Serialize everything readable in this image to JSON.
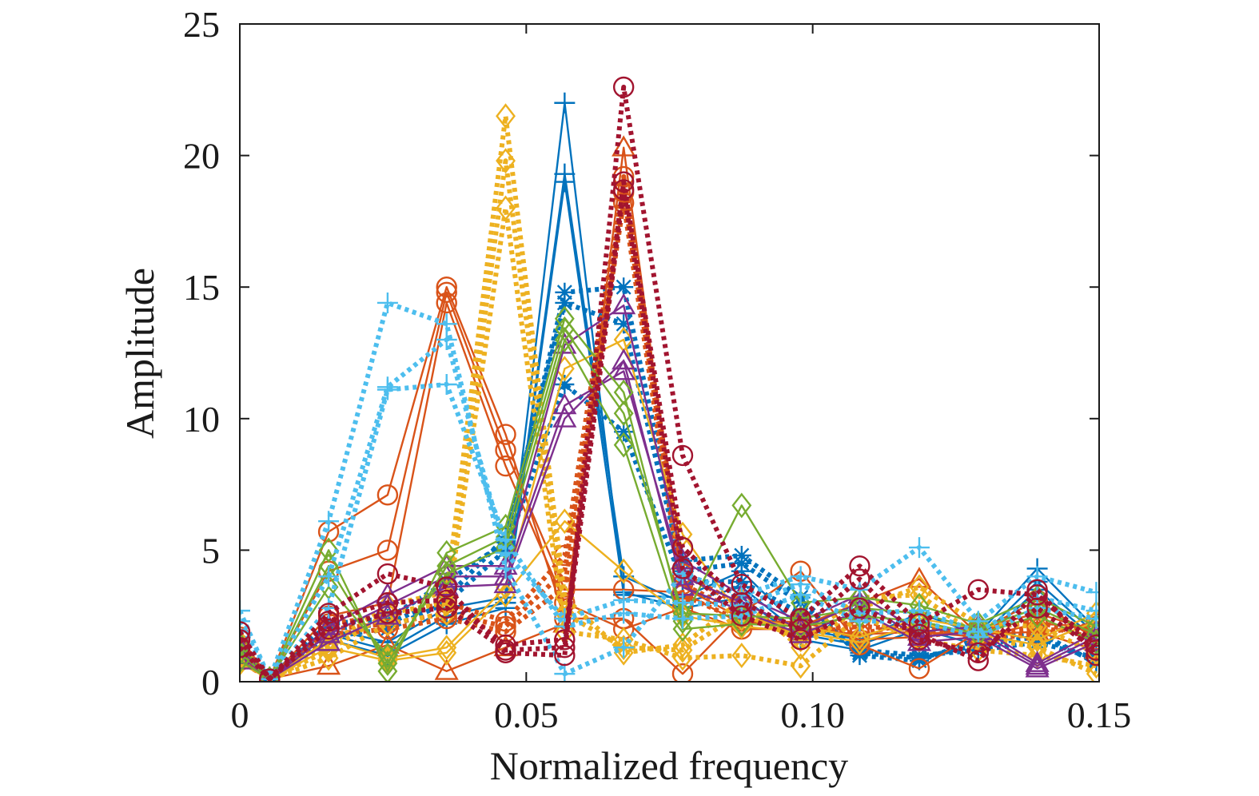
{
  "chart_data": {
    "type": "line",
    "title": "",
    "xlabel": "Normalized frequency",
    "ylabel": "Amplitude",
    "xlim": [
      0,
      0.15
    ],
    "ylim": [
      0,
      25
    ],
    "grid": false,
    "legend": "none",
    "x_ticks": [
      {
        "value": 0,
        "label": "0"
      },
      {
        "value": 0.05,
        "label": "0.05"
      },
      {
        "value": 0.1,
        "label": "0.10"
      },
      {
        "value": 0.15,
        "label": "0.15"
      }
    ],
    "y_ticks": [
      {
        "value": 0,
        "label": "0"
      },
      {
        "value": 5,
        "label": "5"
      },
      {
        "value": 10,
        "label": "10"
      },
      {
        "value": 15,
        "label": "15"
      },
      {
        "value": 20,
        "label": "20"
      },
      {
        "value": 25,
        "label": "25"
      }
    ],
    "x": [
      0,
      0.0052,
      0.0155,
      0.0258,
      0.0361,
      0.0464,
      0.0567,
      0.067,
      0.0773,
      0.0876,
      0.0979,
      0.1082,
      0.1186,
      0.1289,
      0.1392,
      0.1495
    ],
    "series": [
      {
        "color": "#0072bd",
        "dash": "solid",
        "marker": "plus",
        "values": [
          1.2,
          0.1,
          2.0,
          1.5,
          2.8,
          3.2,
          22.0,
          3.3,
          3.2,
          4.2,
          2.0,
          1.6,
          2.6,
          1.8,
          4.3,
          2.0
        ]
      },
      {
        "color": "#0072bd",
        "dash": "solid",
        "marker": "plus",
        "values": [
          1.0,
          0.1,
          1.8,
          1.2,
          2.5,
          3.0,
          19.3,
          4.0,
          3.0,
          3.6,
          1.8,
          1.4,
          2.2,
          1.6,
          3.8,
          1.8
        ]
      },
      {
        "color": "#0072bd",
        "dash": "solid",
        "marker": "plus",
        "values": [
          0.8,
          0.1,
          1.6,
          1.0,
          2.2,
          2.8,
          19.0,
          3.4,
          2.8,
          3.2,
          1.6,
          1.2,
          2.0,
          1.4,
          3.5,
          1.6
        ]
      },
      {
        "color": "#0072bd",
        "dash": "dot",
        "marker": "asterisk",
        "values": [
          1.3,
          0.2,
          2.2,
          2.4,
          3.8,
          5.3,
          14.8,
          15.0,
          4.6,
          4.8,
          3.2,
          1.0,
          0.8,
          1.6,
          1.9,
          0.7
        ]
      },
      {
        "color": "#0072bd",
        "dash": "dot",
        "marker": "asterisk",
        "values": [
          1.1,
          0.2,
          2.0,
          2.2,
          3.2,
          5.5,
          14.4,
          13.6,
          4.2,
          4.5,
          3.0,
          1.1,
          0.9,
          1.4,
          1.7,
          0.8
        ]
      },
      {
        "color": "#0072bd",
        "dash": "dot",
        "marker": "asterisk",
        "values": [
          0.9,
          0.2,
          1.7,
          2.0,
          3.0,
          5.0,
          11.3,
          9.5,
          3.8,
          3.8,
          2.6,
          1.2,
          1.0,
          1.2,
          1.5,
          0.9
        ]
      },
      {
        "color": "#d95319",
        "dash": "solid",
        "marker": "circle",
        "values": [
          1.7,
          0.1,
          5.7,
          7.1,
          15.0,
          9.4,
          2.4,
          2.4,
          0.3,
          2.6,
          4.2,
          1.4,
          0.5,
          1.9,
          3.1,
          1.6
        ]
      },
      {
        "color": "#d95319",
        "dash": "solid",
        "marker": "circle",
        "values": [
          1.4,
          0.1,
          4.2,
          5.0,
          14.8,
          8.8,
          3.5,
          3.5,
          3.4,
          2.2,
          2.3,
          1.6,
          1.7,
          2.0,
          2.6,
          1.9
        ]
      },
      {
        "color": "#d95319",
        "dash": "solid",
        "marker": "circle",
        "values": [
          1.1,
          0.1,
          2.5,
          3.0,
          14.4,
          8.2,
          3.0,
          2.0,
          2.8,
          2.0,
          2.0,
          1.8,
          1.9,
          1.7,
          2.2,
          2.1
        ]
      },
      {
        "color": "#d95319",
        "dash": "solid",
        "marker": "triangle",
        "values": [
          0.9,
          0.1,
          0.6,
          1.4,
          0.4,
          1.3,
          2.2,
          20.3,
          3.6,
          2.4,
          2.1,
          3.0,
          3.9,
          1.8,
          1.9,
          1.2
        ]
      },
      {
        "color": "#d95319",
        "dash": "dot",
        "marker": "circle",
        "values": [
          1.2,
          0.1,
          2.2,
          2.5,
          3.0,
          2.3,
          4.8,
          19.2,
          4.1,
          2.9,
          1.6,
          2.4,
          1.7,
          2.0,
          2.3,
          1.6
        ]
      },
      {
        "color": "#d95319",
        "dash": "dot",
        "marker": "circle",
        "values": [
          1.0,
          0.1,
          2.0,
          2.2,
          2.6,
          2.1,
          4.2,
          18.6,
          3.7,
          2.6,
          1.9,
          2.1,
          2.0,
          1.8,
          2.0,
          1.9
        ]
      },
      {
        "color": "#d95319",
        "dash": "dot",
        "marker": "circle",
        "values": [
          0.8,
          0.1,
          1.8,
          2.0,
          2.4,
          1.9,
          3.6,
          18.2,
          3.3,
          2.3,
          2.2,
          1.8,
          2.3,
          1.6,
          1.8,
          2.2
        ]
      },
      {
        "color": "#edb120",
        "dash": "dot",
        "marker": "diamond",
        "values": [
          1.5,
          0.1,
          1.4,
          2.9,
          3.4,
          21.5,
          3.2,
          1.1,
          1.4,
          3.1,
          1.3,
          2.8,
          3.6,
          2.2,
          2.1,
          1.1
        ]
      },
      {
        "color": "#edb120",
        "dash": "dot",
        "marker": "diamond",
        "values": [
          1.2,
          0.1,
          1.2,
          2.6,
          3.0,
          19.8,
          2.6,
          1.3,
          1.2,
          2.6,
          1.6,
          3.2,
          3.3,
          1.7,
          1.3,
          0.3
        ]
      },
      {
        "color": "#edb120",
        "dash": "dot",
        "marker": "diamond",
        "values": [
          0.9,
          0.1,
          0.9,
          2.2,
          2.6,
          18.0,
          1.9,
          1.6,
          0.9,
          1.0,
          0.6,
          2.5,
          1.6,
          1.2,
          1.0,
          0.6
        ]
      },
      {
        "color": "#edb120",
        "dash": "solid",
        "marker": "diamond",
        "values": [
          1.0,
          0.1,
          1.6,
          0.9,
          1.3,
          3.6,
          11.9,
          13.0,
          5.6,
          2.4,
          2.1,
          1.7,
          2.4,
          2.0,
          1.6,
          2.6
        ]
      },
      {
        "color": "#edb120",
        "dash": "solid",
        "marker": "diamond",
        "values": [
          0.7,
          0.1,
          1.3,
          0.8,
          1.1,
          3.3,
          6.1,
          4.2,
          2.5,
          2.1,
          1.9,
          1.5,
          2.2,
          1.8,
          1.4,
          2.3
        ]
      },
      {
        "color": "#7e2f8e",
        "dash": "solid",
        "marker": "triangle",
        "values": [
          1.3,
          0.1,
          2.1,
          3.3,
          4.4,
          4.4,
          12.8,
          14.3,
          4.6,
          3.3,
          2.3,
          3.3,
          1.9,
          2.1,
          0.7,
          1.9
        ]
      },
      {
        "color": "#7e2f8e",
        "dash": "solid",
        "marker": "triangle",
        "values": [
          1.0,
          0.1,
          1.8,
          2.9,
          4.0,
          4.0,
          10.5,
          11.8,
          4.0,
          3.0,
          2.0,
          3.0,
          1.7,
          1.9,
          0.6,
          1.7
        ]
      },
      {
        "color": "#7e2f8e",
        "dash": "solid",
        "marker": "triangle",
        "values": [
          0.8,
          0.1,
          1.5,
          2.5,
          3.6,
          3.7,
          10.0,
          12.2,
          3.6,
          2.7,
          1.8,
          2.7,
          1.5,
          1.7,
          0.5,
          1.5
        ]
      },
      {
        "color": "#77ac30",
        "dash": "solid",
        "marker": "diamond",
        "values": [
          1.4,
          0.1,
          5.0,
          0.4,
          4.9,
          5.9,
          13.8,
          11.0,
          2.3,
          6.7,
          3.0,
          3.2,
          2.9,
          2.2,
          3.2,
          2.1
        ]
      },
      {
        "color": "#77ac30",
        "dash": "solid",
        "marker": "diamond",
        "values": [
          1.1,
          0.1,
          4.4,
          0.7,
          4.4,
          5.5,
          13.4,
          10.2,
          2.6,
          2.5,
          2.4,
          2.8,
          2.6,
          2.0,
          2.8,
          1.8
        ]
      },
      {
        "color": "#77ac30",
        "dash": "solid",
        "marker": "diamond",
        "values": [
          0.8,
          0.1,
          3.6,
          1.0,
          4.1,
          5.1,
          13.0,
          9.0,
          2.0,
          2.2,
          2.1,
          2.5,
          2.3,
          1.8,
          2.5,
          1.5
        ]
      },
      {
        "color": "#4dbeee",
        "dash": "dot",
        "marker": "plus",
        "values": [
          2.7,
          0.1,
          6.1,
          14.4,
          13.6,
          4.3,
          0.3,
          1.3,
          4.1,
          3.3,
          4.0,
          3.5,
          5.1,
          2.3,
          4.0,
          3.4
        ]
      },
      {
        "color": "#4dbeee",
        "dash": "dot",
        "marker": "plus",
        "values": [
          2.3,
          0.1,
          4.0,
          11.2,
          13.0,
          4.9,
          2.4,
          3.1,
          3.0,
          2.9,
          3.7,
          2.6,
          2.7,
          1.9,
          3.2,
          2.7
        ]
      },
      {
        "color": "#4dbeee",
        "dash": "dot",
        "marker": "plus",
        "values": [
          1.9,
          0.1,
          2.8,
          11.1,
          11.3,
          5.4,
          2.1,
          2.6,
          2.4,
          2.5,
          3.3,
          2.3,
          2.3,
          1.7,
          2.8,
          2.4
        ]
      },
      {
        "color": "#a2142f",
        "dash": "dot",
        "marker": "circle",
        "values": [
          1.9,
          0.1,
          2.6,
          4.1,
          3.6,
          1.1,
          1.0,
          22.6,
          8.6,
          3.7,
          2.4,
          4.4,
          2.2,
          3.5,
          3.3,
          1.4
        ]
      },
      {
        "color": "#a2142f",
        "dash": "dot",
        "marker": "circle",
        "values": [
          1.6,
          0.1,
          2.3,
          3.0,
          3.1,
          1.4,
          1.6,
          19.0,
          5.1,
          3.0,
          2.0,
          3.9,
          1.6,
          1.1,
          2.8,
          1.2
        ]
      },
      {
        "color": "#a2142f",
        "dash": "dot",
        "marker": "circle",
        "values": [
          1.3,
          0.1,
          2.0,
          2.6,
          2.8,
          1.2,
          1.3,
          18.7,
          4.3,
          2.5,
          1.6,
          2.8,
          1.8,
          0.8,
          3.5,
          1.0
        ]
      }
    ]
  }
}
